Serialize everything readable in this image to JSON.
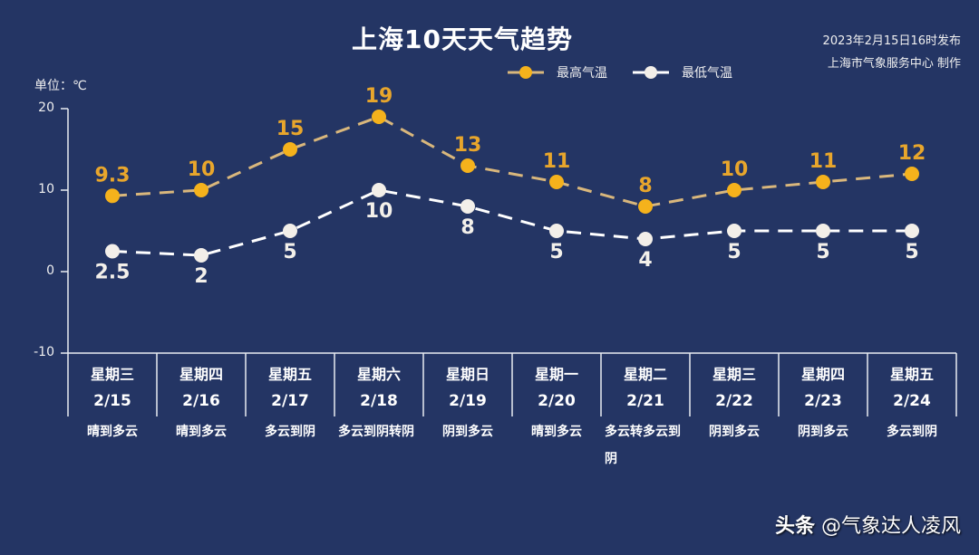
{
  "header": {
    "title": "上海10天天气趋势",
    "publish_time": "2023年2月15日16时发布",
    "publisher": "上海市气象服务中心 制作",
    "unit_label": "单位：℃"
  },
  "legend": {
    "high_label": "最高气温",
    "low_label": "最低气温"
  },
  "colors": {
    "background": "#243564",
    "high_line": "#d9b77c",
    "high_marker": "#f5b21c",
    "high_label": "#e8a62c",
    "low_line": "#ffffff",
    "low_marker": "#f3efe9"
  },
  "y_ticks": [
    "20",
    "10",
    "0",
    "-10"
  ],
  "days": [
    {
      "weekday": "星期三",
      "date": "2/15",
      "weather": "晴到多云"
    },
    {
      "weekday": "星期四",
      "date": "2/16",
      "weather": "晴到多云"
    },
    {
      "weekday": "星期五",
      "date": "2/17",
      "weather": "多云到阴"
    },
    {
      "weekday": "星期六",
      "date": "2/18",
      "weather": "多云到阴转阴"
    },
    {
      "weekday": "星期日",
      "date": "2/19",
      "weather": "阴到多云"
    },
    {
      "weekday": "星期一",
      "date": "2/20",
      "weather": "晴到多云"
    },
    {
      "weekday": "星期二",
      "date": "2/21",
      "weather": "多云转多云到阴"
    },
    {
      "weekday": "星期三",
      "date": "2/22",
      "weather": "阴到多云"
    },
    {
      "weekday": "星期四",
      "date": "2/23",
      "weather": "阴到多云"
    },
    {
      "weekday": "星期五",
      "date": "2/24",
      "weather": "多云到阴"
    }
  ],
  "watermark": {
    "brand": "头条",
    "handle": "@气象达人凌风"
  },
  "chart_data": {
    "type": "line",
    "title": "上海10天天气趋势",
    "subtitle": "2023年2月15日16时发布 / 上海市气象服务中心 制作",
    "xlabel": "",
    "ylabel": "单位：℃",
    "categories": [
      "星期三 2/15",
      "星期四 2/16",
      "星期五 2/17",
      "星期六 2/18",
      "星期日 2/19",
      "星期一 2/20",
      "星期二 2/21",
      "星期三 2/22",
      "星期四 2/23",
      "星期五 2/24"
    ],
    "series": [
      {
        "name": "最高气温",
        "values": [
          9.3,
          10,
          15,
          19,
          13,
          11,
          8,
          10,
          11,
          12
        ],
        "labels": [
          "9.3",
          "10",
          "15",
          "19",
          "13",
          "11",
          "8",
          "10",
          "11",
          "12"
        ]
      },
      {
        "name": "最低气温",
        "values": [
          2.5,
          2,
          5,
          10,
          8,
          5,
          4,
          5,
          5,
          5
        ],
        "labels": [
          "2.5",
          "2",
          "5",
          "10",
          "8",
          "5",
          "4",
          "5",
          "5",
          "5"
        ]
      }
    ],
    "ylim": [
      -10,
      20
    ],
    "yticks": [
      -10,
      0,
      10,
      20
    ],
    "grid": false,
    "legend_position": "top",
    "line_style": "dashed"
  }
}
